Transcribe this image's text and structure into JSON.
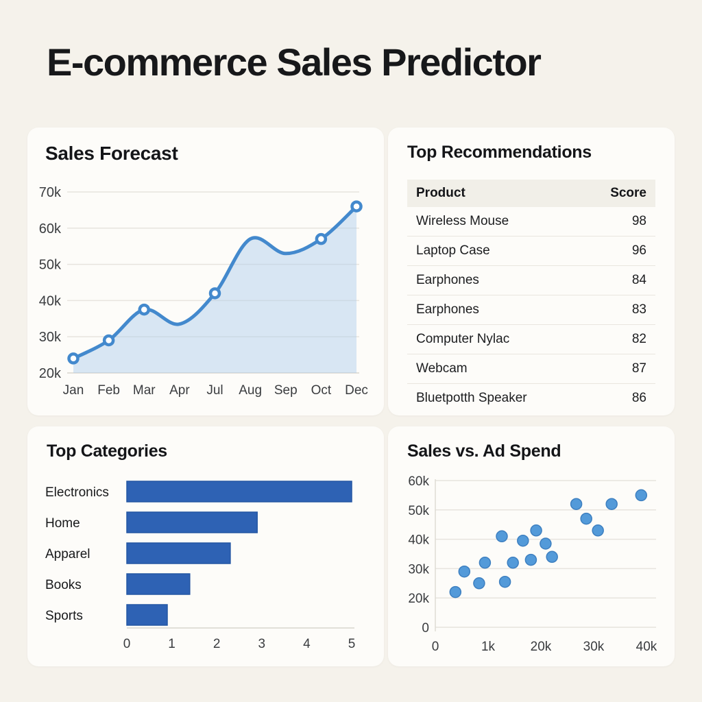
{
  "page_title": "E-commerce Sales Predictor",
  "recommendations": {
    "title": "Top Recommendations",
    "columns": [
      "Product",
      "Score"
    ],
    "rows": [
      [
        "Wireless Mouse",
        98
      ],
      [
        "Laptop Case",
        96
      ],
      [
        "Earphones",
        84
      ],
      [
        "Earphones",
        83
      ],
      [
        "Computer Nylac",
        82
      ],
      [
        "Webcam",
        87
      ],
      [
        "Bluetpotth Speaker",
        86
      ]
    ]
  },
  "chart_data": [
    {
      "type": "line",
      "title": "Sales Forecast",
      "xlabel": "",
      "ylabel": "",
      "ylim": [
        20000,
        70000
      ],
      "yticks": [
        "70k",
        "60k",
        "50k",
        "40k",
        "30k",
        "20k"
      ],
      "grid": true,
      "line_color": "#4389cd",
      "fill_color": "#aacdec",
      "marker_fill": "#ffffff",
      "points": [
        {
          "label": "Jan",
          "value": 24000,
          "marker": true
        },
        {
          "label": "Feb",
          "value": 29000,
          "marker": true
        },
        {
          "label": "Mar",
          "value": 37500,
          "marker": true
        },
        {
          "label": "Apr",
          "value": 33500,
          "marker": false
        },
        {
          "label": "Jul",
          "value": 42000,
          "marker": true
        },
        {
          "label": "Aug",
          "value": 57000,
          "marker": false
        },
        {
          "label": "Sep",
          "value": 53000,
          "marker": false
        },
        {
          "label": "Oct",
          "value": 57000,
          "marker": true
        },
        {
          "label": "Dec",
          "value": 66000,
          "marker": true
        }
      ]
    },
    {
      "type": "bar",
      "title": "Top Categories",
      "orientation": "horizontal",
      "categories": [
        "Electronics",
        "Home",
        "Apparel",
        "Books",
        "Sports"
      ],
      "values": [
        5.0,
        2.9,
        2.3,
        1.4,
        0.9
      ],
      "xticks": [
        "0",
        "1",
        "2",
        "3",
        "4",
        "5"
      ],
      "xlim": [
        0,
        5
      ],
      "grid": false,
      "bar_color": "#2e62b4",
      "bar_border": "#2456a3"
    },
    {
      "type": "scatter",
      "title": "Sales vs. Ad Spend",
      "xlabel": "",
      "ylabel": "",
      "xticks": [
        "0",
        "1k",
        "20k",
        "30k",
        "40k"
      ],
      "yticks": [
        "60k",
        "50k",
        "40k",
        "30k",
        "20k",
        "0"
      ],
      "xlim_k": [
        0,
        40
      ],
      "grid": true,
      "point_color": "#539ad9",
      "point_border": "#3d7fc0",
      "points_k": [
        [
          3.8,
          22
        ],
        [
          5.5,
          29
        ],
        [
          8.3,
          25
        ],
        [
          9.4,
          32
        ],
        [
          12.6,
          41
        ],
        [
          13.2,
          25.5
        ],
        [
          14.7,
          32
        ],
        [
          16.6,
          39.5
        ],
        [
          18.1,
          33
        ],
        [
          19.1,
          43
        ],
        [
          20.9,
          38.5
        ],
        [
          22.1,
          34
        ],
        [
          26.7,
          52
        ],
        [
          28.6,
          47
        ],
        [
          30.8,
          43
        ],
        [
          33.4,
          52
        ],
        [
          39,
          55
        ]
      ]
    }
  ]
}
